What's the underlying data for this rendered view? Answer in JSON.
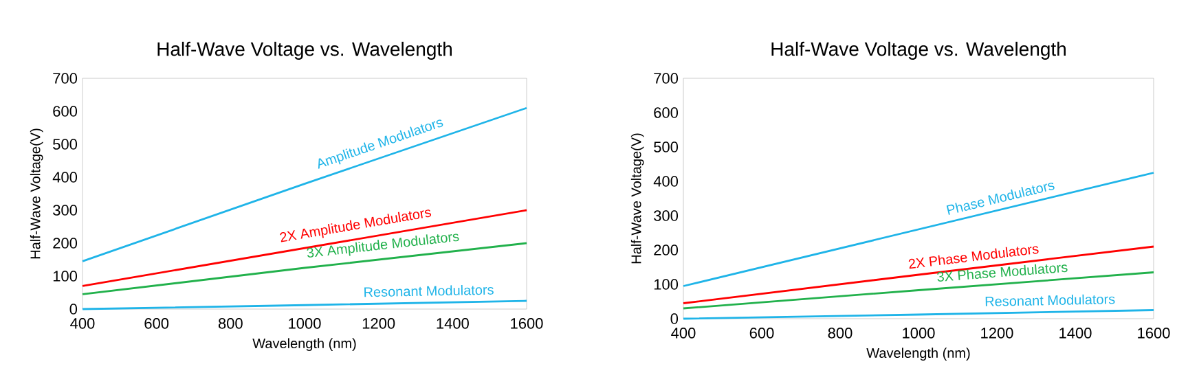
{
  "chart_data": [
    {
      "type": "line",
      "title": "Half-Wave Voltage vs. Wavelength",
      "xlabel": "Wavelength (nm)",
      "ylabel": "Half-Wave Voltage(V)",
      "x": [
        400,
        1000,
        1600
      ],
      "xlim": [
        400,
        1600
      ],
      "xticks": [
        400,
        600,
        800,
        1000,
        1200,
        1400,
        1600
      ],
      "ylim": [
        0,
        700
      ],
      "yticks": [
        0,
        100,
        200,
        300,
        400,
        500,
        600,
        700
      ],
      "grid": false,
      "series": [
        {
          "name": "Amplitude Modulators",
          "color": "#1fb4e8",
          "values": [
            145,
            380,
            610
          ]
        },
        {
          "name": "2X Amplitude Modulators",
          "color": "#ff0000",
          "values": [
            70,
            185,
            300
          ]
        },
        {
          "name": "3X Amplitude Modulators",
          "color": "#22b14c",
          "values": [
            45,
            125,
            200
          ]
        },
        {
          "name": "Resonant Modulators",
          "color": "#1fb4e8",
          "values": [
            0,
            12,
            25
          ]
        }
      ]
    },
    {
      "type": "line",
      "title": "Half-Wave Voltage vs. Wavelength",
      "xlabel": "Wavelength (nm)",
      "ylabel": "Half-Wave Voltage(V)",
      "x": [
        400,
        1000,
        1600
      ],
      "xlim": [
        400,
        1600
      ],
      "xticks": [
        400,
        600,
        800,
        1000,
        1200,
        1400,
        1600
      ],
      "ylim": [
        0,
        700
      ],
      "yticks": [
        0,
        100,
        200,
        300,
        400,
        500,
        600,
        700
      ],
      "grid": false,
      "series": [
        {
          "name": "Phase Modulators",
          "color": "#1fb4e8",
          "values": [
            95,
            260,
            425
          ]
        },
        {
          "name": "2X Phase Modulators",
          "color": "#ff0000",
          "values": [
            45,
            128,
            210
          ]
        },
        {
          "name": "3X Phase Modulators",
          "color": "#22b14c",
          "values": [
            30,
            83,
            135
          ]
        },
        {
          "name": "Resonant Modulators",
          "color": "#1fb4e8",
          "values": [
            0,
            12,
            25
          ]
        }
      ]
    }
  ]
}
